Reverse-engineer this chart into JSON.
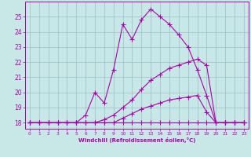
{
  "xlabel": "Windchill (Refroidissement éolien,°C)",
  "x_values": [
    0,
    1,
    2,
    3,
    4,
    5,
    6,
    7,
    8,
    9,
    10,
    11,
    12,
    13,
    14,
    15,
    16,
    17,
    18,
    19,
    20,
    21,
    22,
    23
  ],
  "line1_y": [
    18.0,
    18.0,
    18.0,
    18.0,
    18.0,
    18.0,
    18.5,
    20.0,
    19.3,
    21.5,
    24.5,
    23.5,
    24.8,
    25.5,
    25.0,
    24.5,
    23.8,
    23.0,
    21.5,
    19.8,
    18.0,
    18.0,
    18.0,
    18.0
  ],
  "line2_y": [
    18.0,
    18.0,
    18.0,
    18.0,
    18.0,
    18.0,
    18.0,
    18.0,
    18.2,
    18.5,
    19.0,
    19.5,
    20.2,
    20.8,
    21.2,
    21.6,
    21.8,
    22.0,
    22.2,
    21.8,
    18.0,
    18.0,
    18.0,
    18.0
  ],
  "line3_y": [
    18.0,
    18.0,
    18.0,
    18.0,
    18.0,
    18.0,
    18.0,
    18.0,
    18.0,
    18.0,
    18.3,
    18.6,
    18.9,
    19.1,
    19.3,
    19.5,
    19.6,
    19.7,
    19.8,
    18.7,
    18.0,
    18.0,
    18.0,
    18.0
  ],
  "line4_y": [
    18.0,
    18.0,
    18.0,
    18.0,
    18.0,
    18.0,
    18.0,
    18.0,
    18.0,
    18.0,
    18.0,
    18.0,
    18.0,
    18.0,
    18.0,
    18.0,
    18.0,
    18.0,
    18.0,
    18.0,
    18.0,
    18.0,
    18.0,
    18.0
  ],
  "ylim": [
    17.6,
    26.0
  ],
  "yticks": [
    18,
    19,
    20,
    21,
    22,
    23,
    24,
    25
  ],
  "xticks": [
    0,
    1,
    2,
    3,
    4,
    5,
    6,
    7,
    8,
    9,
    10,
    11,
    12,
    13,
    14,
    15,
    16,
    17,
    18,
    19,
    20,
    21,
    22,
    23
  ],
  "line_color": "#aa00aa",
  "bg_color": "#c8e8e8",
  "grid_color": "#9bbfbf",
  "marker": "+",
  "markersize": 4,
  "linewidth": 0.8
}
